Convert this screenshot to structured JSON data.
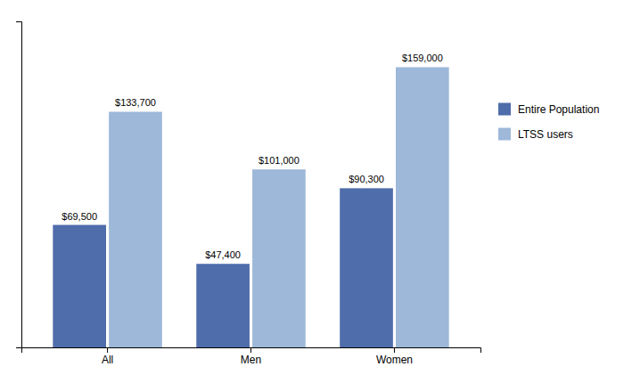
{
  "chart_data": {
    "type": "bar",
    "categories": [
      "All",
      "Men",
      "Women"
    ],
    "series": [
      {
        "name": "Entire Population",
        "color": "#4F6DAB",
        "values": [
          69500,
          47400,
          90300
        ],
        "value_labels": [
          "$69,500",
          "$47,400",
          "$90,300"
        ]
      },
      {
        "name": "LTSS users",
        "color": "#9DB8D9",
        "values": [
          133700,
          101000,
          159000
        ],
        "value_labels": [
          "$133,700",
          "$101,000",
          "$159,000"
        ]
      }
    ],
    "ylim": [
      0,
      185000
    ],
    "data_labels": true,
    "tick_labels": "x",
    "grid": false,
    "legend": "right"
  }
}
